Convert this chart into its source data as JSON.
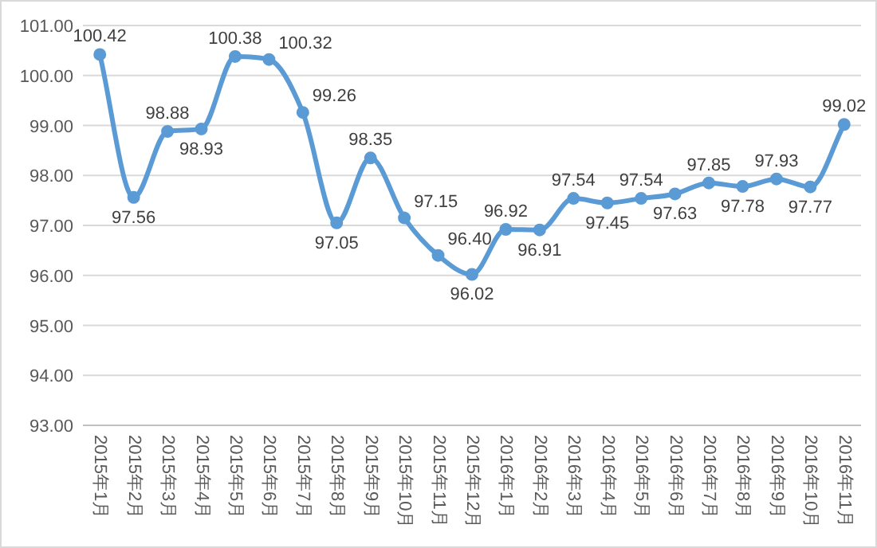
{
  "chart_data": {
    "type": "line",
    "categories": [
      "2015年1月",
      "2015年2月",
      "2015年3月",
      "2015年4月",
      "2015年5月",
      "2015年6月",
      "2015年7月",
      "2015年8月",
      "2015年9月",
      "2015年10月",
      "2015年11月",
      "2015年12月",
      "2016年1月",
      "2016年2月",
      "2016年3月",
      "2016年4月",
      "2016年5月",
      "2016年6月",
      "2016年7月",
      "2016年8月",
      "2016年9月",
      "2016年10月",
      "2016年11月"
    ],
    "series": [
      {
        "color": "#5b9bd5",
        "values": [
          100.42,
          97.56,
          98.88,
          98.93,
          100.38,
          100.32,
          99.26,
          97.05,
          98.35,
          97.15,
          96.4,
          96.02,
          96.92,
          96.91,
          97.54,
          97.45,
          97.54,
          97.63,
          97.85,
          97.78,
          97.93,
          97.77,
          99.02
        ],
        "value_labels": [
          "100.42",
          "97.56",
          "98.88",
          "98.93",
          "100.38",
          "100.32",
          "99.26",
          "97.05",
          "98.35",
          "97.15",
          "96.40",
          "96.02",
          "96.92",
          "96.91",
          "97.54",
          "97.45",
          "97.54",
          "97.63",
          "97.85",
          "97.78",
          "97.93",
          "97.77",
          "99.02"
        ]
      }
    ],
    "ylim": [
      93,
      101
    ],
    "yticks": [
      {
        "value": 93,
        "label": "93.00"
      },
      {
        "value": 94,
        "label": "94.00"
      },
      {
        "value": 95,
        "label": "95.00"
      },
      {
        "value": 96,
        "label": "96.00"
      },
      {
        "value": 97,
        "label": "97.00"
      },
      {
        "value": 98,
        "label": "98.00"
      },
      {
        "value": 99,
        "label": "99.00"
      },
      {
        "value": 100,
        "label": "100.00"
      },
      {
        "value": 101,
        "label": "101.00"
      }
    ],
    "grid": "y",
    "marker": "circle",
    "line_style": "solid"
  }
}
